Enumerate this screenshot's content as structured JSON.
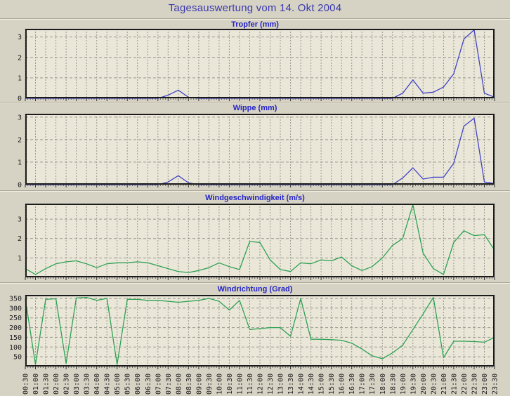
{
  "page": {
    "title": "Tagesauswertung vom 14. Okt 2004"
  },
  "style": {
    "page_bg": "#d6d2c4",
    "plot_bg": "#eae7d9",
    "title_color": "#3a3ab0",
    "chart_title_color": "#2424c8",
    "grid_color": "#98988c",
    "axis_color": "#1b1b1b",
    "rain_line_color": "#4343c2",
    "wind_line_color": "#2ea153"
  },
  "x_labels": [
    "00:30",
    "01:00",
    "01:30",
    "02:00",
    "02:30",
    "03:00",
    "03:30",
    "04:00",
    "04:30",
    "05:00",
    "05:30",
    "06:00",
    "06:30",
    "07:00",
    "07:30",
    "08:00",
    "08:30",
    "09:00",
    "09:30",
    "10:00",
    "10:30",
    "11:00",
    "11:30",
    "12:00",
    "12:30",
    "13:00",
    "13:30",
    "14:00",
    "14:30",
    "15:00",
    "15:30",
    "16:00",
    "16:30",
    "17:00",
    "17:30",
    "18:00",
    "18:30",
    "19:00",
    "19:30",
    "20:00",
    "20:30",
    "21:00",
    "21:30",
    "22:00",
    "22:30",
    "23:00",
    "23:30"
  ],
  "chart_data": [
    {
      "type": "line",
      "title": "Tropfer (mm)",
      "color": "#4343c2",
      "ylim": [
        0,
        3.4
      ],
      "yticks": [
        0,
        1,
        2,
        3
      ],
      "grid": true,
      "legend_position": "none",
      "values": [
        0,
        0,
        0,
        0,
        0,
        0,
        0,
        0,
        0,
        0,
        0,
        0,
        0,
        0,
        0.15,
        0.4,
        0.05,
        0,
        0,
        0,
        0,
        0,
        0,
        0,
        0,
        0,
        0,
        0,
        0,
        0,
        0,
        0,
        0,
        0,
        0,
        0,
        0,
        0.25,
        0.9,
        0.25,
        0.3,
        0.55,
        1.2,
        2.9,
        3.35,
        0.25,
        0.05
      ]
    },
    {
      "type": "line",
      "title": "Wippe (mm)",
      "color": "#4343c2",
      "ylim": [
        0,
        3.15
      ],
      "yticks": [
        0,
        1,
        2,
        3
      ],
      "grid": true,
      "legend_position": "none",
      "values": [
        0,
        0,
        0,
        0,
        0,
        0,
        0,
        0,
        0,
        0,
        0,
        0,
        0,
        0,
        0.12,
        0.4,
        0.08,
        0,
        0,
        0,
        0,
        0,
        0,
        0,
        0,
        0,
        0,
        0,
        0,
        0,
        0,
        0,
        0,
        0,
        0,
        0,
        0,
        0.3,
        0.75,
        0.25,
        0.33,
        0.33,
        0.95,
        2.6,
        2.95,
        0.12,
        0.05
      ]
    },
    {
      "type": "line",
      "title": "Windgeschwindigkeit (m/s)",
      "color": "#2ea153",
      "ylim": [
        0,
        3.8
      ],
      "yticks": [
        1,
        2,
        3
      ],
      "grid": true,
      "legend_position": "none",
      "values": [
        0.45,
        0.15,
        0.45,
        0.7,
        0.8,
        0.85,
        0.7,
        0.5,
        0.7,
        0.75,
        0.75,
        0.8,
        0.75,
        0.6,
        0.45,
        0.3,
        0.25,
        0.35,
        0.5,
        0.75,
        0.55,
        0.4,
        1.85,
        1.8,
        0.9,
        0.4,
        0.3,
        0.75,
        0.7,
        0.9,
        0.85,
        1.05,
        0.6,
        0.35,
        0.55,
        1.0,
        1.65,
        2.0,
        3.75,
        1.25,
        0.45,
        0.15,
        1.8,
        2.4,
        2.15,
        2.2,
        1.4
      ]
    },
    {
      "type": "line",
      "title": "Windrichtung (Grad)",
      "color": "#2ea153",
      "ylim": [
        0,
        368
      ],
      "yticks": [
        50,
        100,
        150,
        200,
        250,
        300,
        350
      ],
      "grid": true,
      "legend_position": "none",
      "values": [
        348,
        10,
        345,
        348,
        15,
        352,
        355,
        340,
        350,
        10,
        345,
        345,
        340,
        340,
        335,
        330,
        335,
        340,
        350,
        335,
        290,
        340,
        190,
        195,
        200,
        200,
        155,
        350,
        140,
        140,
        138,
        135,
        120,
        90,
        55,
        40,
        70,
        110,
        190,
        270,
        355,
        45,
        130,
        130,
        128,
        125,
        150
      ]
    }
  ]
}
